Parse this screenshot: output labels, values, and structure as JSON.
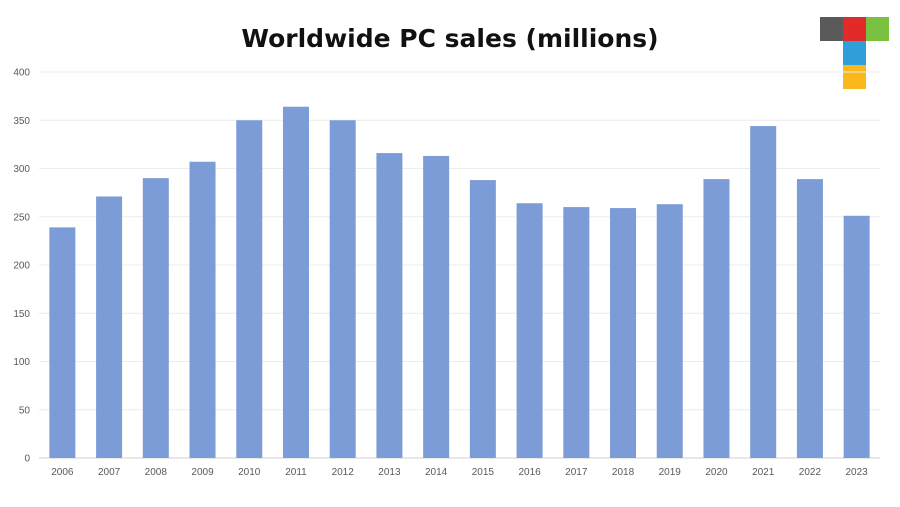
{
  "chart_data": {
    "type": "bar",
    "title": "Worldwide PC sales (millions)",
    "xlabel": "",
    "ylabel": "",
    "categories": [
      "2006",
      "2007",
      "2008",
      "2009",
      "2010",
      "2011",
      "2012",
      "2013",
      "2014",
      "2015",
      "2016",
      "2017",
      "2018",
      "2019",
      "2020",
      "2021",
      "2022",
      "2023"
    ],
    "values": [
      239,
      271,
      290,
      307,
      350,
      364,
      350,
      316,
      313,
      288,
      264,
      260,
      259,
      263,
      289,
      344,
      289,
      251
    ],
    "ylim": [
      0,
      400
    ],
    "yticks": [
      0,
      50,
      100,
      150,
      200,
      250,
      300,
      350,
      400
    ],
    "grid": true,
    "bar_color": "#7b9cd6"
  },
  "logo": {
    "colors": [
      "#5a5a5a",
      "#e32a2a",
      "#7ac142",
      "#2e9fd9",
      "#fbb81b"
    ]
  }
}
